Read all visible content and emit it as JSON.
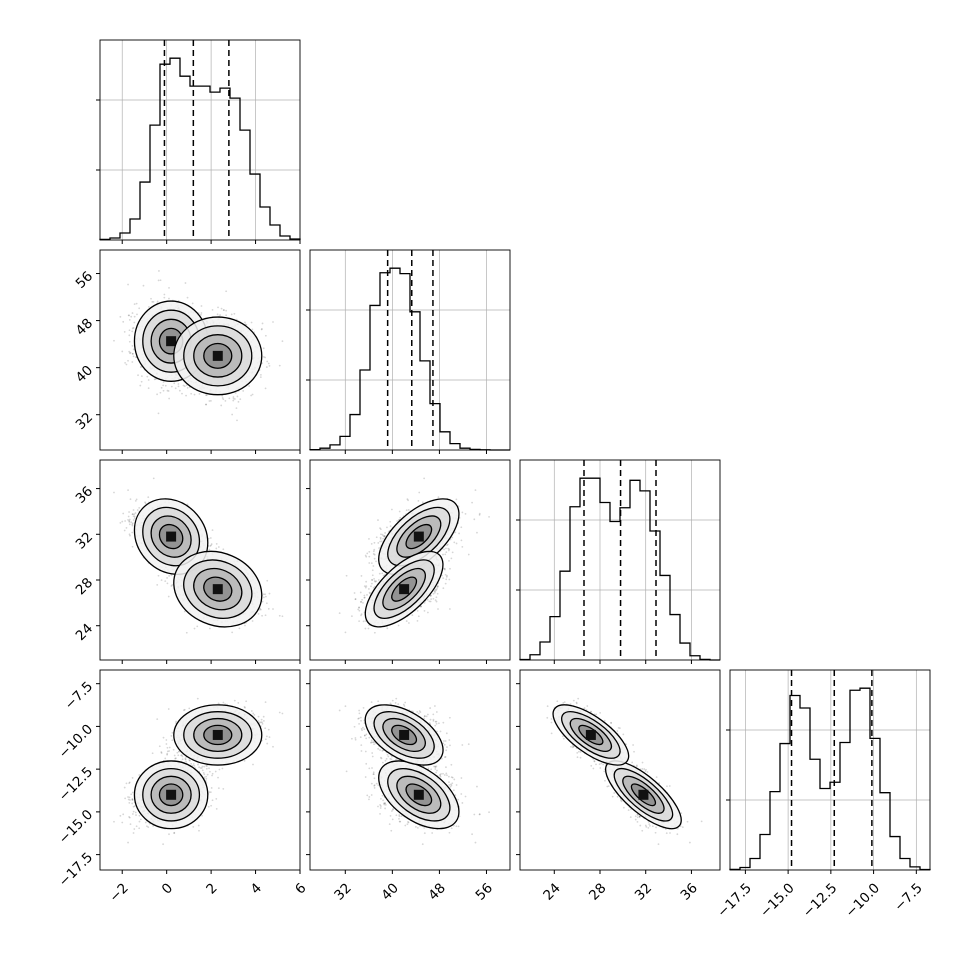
{
  "chart_data": {
    "type": "corner",
    "parameters": [
      {
        "name": "",
        "range": [
          -3.0,
          6.0
        ],
        "quantiles": [
          -0.1,
          1.2,
          2.8
        ],
        "ticks": [
          -2,
          0,
          2,
          4,
          6
        ],
        "tick_labels": [
          "−2",
          "0",
          "2",
          "4",
          "6"
        ]
      },
      {
        "name": "",
        "range": [
          26.0,
          60.0
        ],
        "quantiles": [
          39.2,
          43.3,
          46.9
        ],
        "ticks": [
          32,
          40,
          48,
          56
        ],
        "tick_labels": [
          "32",
          "40",
          "48",
          "56"
        ]
      },
      {
        "name": "",
        "range": [
          21.0,
          38.5
        ],
        "quantiles": [
          26.6,
          29.8,
          32.9
        ],
        "ticks": [
          24,
          28,
          32,
          36
        ],
        "tick_labels": [
          "24",
          "28",
          "32",
          "36"
        ]
      },
      {
        "name": "",
        "range": [
          -18.4,
          -6.7
        ],
        "quantiles": [
          -14.8,
          -12.3,
          -10.1
        ],
        "ticks": [
          -17.5,
          -15.0,
          -12.5,
          -10.0,
          -7.5
        ],
        "tick_labels": [
          "−17.5",
          "−15.0",
          "−12.5",
          "−10.0",
          "−7.5"
        ]
      }
    ],
    "histograms": [
      {
        "param": 0,
        "bins": 20,
        "counts": [
          3,
          10,
          35,
          105,
          290,
          575,
          880,
          910,
          820,
          770,
          770,
          740,
          760,
          710,
          550,
          330,
          165,
          75,
          20,
          5
        ]
      },
      {
        "param": 1,
        "bins": 20,
        "counts": [
          2,
          10,
          28,
          75,
          195,
          440,
          795,
          975,
          1000,
          970,
          760,
          490,
          255,
          100,
          35,
          10,
          3,
          1,
          0,
          0
        ]
      },
      {
        "param": 2,
        "bins": 20,
        "counts": [
          2,
          25,
          85,
          205,
          420,
          725,
          860,
          860,
          745,
          655,
          720,
          850,
          800,
          610,
          400,
          215,
          80,
          20,
          3,
          0
        ]
      },
      {
        "param": 3,
        "bins": 20,
        "counts": [
          3,
          12,
          55,
          170,
          375,
          605,
          835,
          775,
          530,
          390,
          420,
          610,
          860,
          870,
          630,
          370,
          160,
          55,
          15,
          2
        ]
      }
    ],
    "modes": [
      {
        "weight": 0.5,
        "mean": [
          0.2,
          44.5,
          31.8,
          -14.0
        ],
        "sd": [
          0.75,
          3.1,
          1.5,
          0.9
        ],
        "corr_12": 0.6,
        "corr_13": -0.55,
        "corr_23": -0.75
      },
      {
        "weight": 0.5,
        "mean": [
          2.3,
          42.0,
          27.2,
          -10.5
        ],
        "sd": [
          0.9,
          3.0,
          1.5,
          0.8
        ],
        "corr_12": 0.65,
        "corr_13": -0.55,
        "corr_23": -0.7
      }
    ],
    "contour_levels": [
      0.5,
      1.0,
      1.5,
      2.0
    ],
    "grid": true,
    "colors": {
      "line": "#000000",
      "grid": "#b0b0b0",
      "points": "#000000"
    }
  }
}
